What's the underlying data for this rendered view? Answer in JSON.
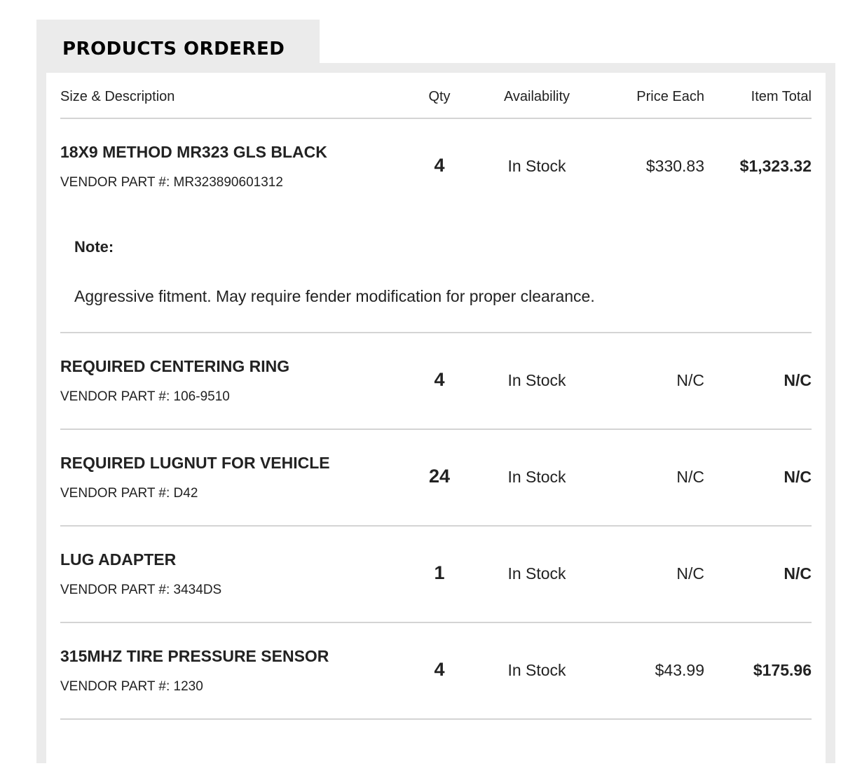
{
  "section": {
    "title": "PRODUCTS ORDERED"
  },
  "table": {
    "headers": {
      "description": "Size & Description",
      "qty": "Qty",
      "availability": "Availability",
      "price_each": "Price Each",
      "item_total": "Item Total"
    },
    "rows": [
      {
        "name": "18X9 METHOD MR323 GLS BLACK",
        "part": "VENDOR PART #: MR323890601312",
        "qty": "4",
        "availability": "In Stock",
        "price_each": "$330.83",
        "item_total": "$1,323.32",
        "note_label": "Note:",
        "note_text": "Aggressive fitment. May require fender modification for proper clearance."
      },
      {
        "name": "REQUIRED CENTERING RING",
        "part": "VENDOR PART #: 106-9510",
        "qty": "4",
        "availability": "In Stock",
        "price_each": "N/C",
        "item_total": "N/C"
      },
      {
        "name": "REQUIRED LUGNUT FOR VEHICLE",
        "part": "VENDOR PART #: D42",
        "qty": "24",
        "availability": "In Stock",
        "price_each": "N/C",
        "item_total": "N/C"
      },
      {
        "name": "LUG ADAPTER",
        "part": "VENDOR PART #: 3434DS",
        "qty": "1",
        "availability": "In Stock",
        "price_each": "N/C",
        "item_total": "N/C"
      },
      {
        "name": "315MHZ TIRE PRESSURE SENSOR",
        "part": "VENDOR PART #: 1230",
        "qty": "4",
        "availability": "In Stock",
        "price_each": "$43.99",
        "item_total": "$175.96"
      }
    ]
  }
}
